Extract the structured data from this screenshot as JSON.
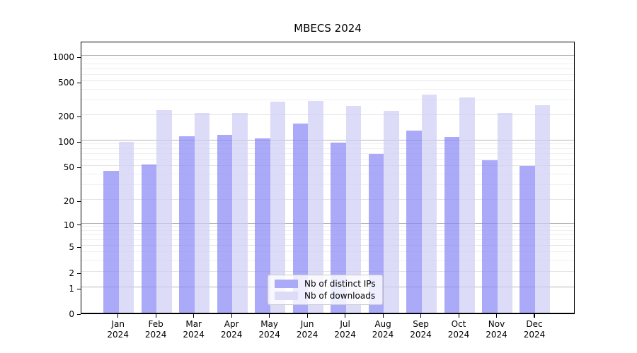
{
  "title": "MBECS 2024",
  "colors": {
    "bar_dark": "rgba(134,134,245,0.7)",
    "bar_light": "rgba(205,205,245,0.7)",
    "bar_dark_solid": "#aaaaf8",
    "bar_light_solid": "#dcdcf8",
    "grid_major": "#b3b3b3",
    "grid_mid": "#e4e4e4",
    "grid_minor": "#f0f0f0",
    "axis": "#000000",
    "background": "#ffffff"
  },
  "legend": {
    "items": [
      {
        "label": "Nb of distinct IPs",
        "swatch": "dark"
      },
      {
        "label": "Nb of downloads",
        "swatch": "light"
      }
    ]
  },
  "y_axis": {
    "tick_values": [
      1000,
      500,
      200,
      100,
      50,
      20,
      10,
      5,
      2,
      1,
      0
    ],
    "tick_labels": [
      "1000",
      "500",
      "200",
      "100",
      "50",
      "20",
      "10",
      "5",
      "2",
      "1",
      "0"
    ]
  },
  "x_axis": {
    "months": [
      "Jan",
      "Feb",
      "Mar",
      "Apr",
      "May",
      "Jun",
      "Jul",
      "Aug",
      "Sep",
      "Oct",
      "Nov",
      "Dec"
    ],
    "year": "2024"
  },
  "chart_data": {
    "type": "bar",
    "title": "MBECS 2024",
    "categories": [
      "Jan 2024",
      "Feb 2024",
      "Mar 2024",
      "Apr 2024",
      "May 2024",
      "Jun 2024",
      "Jul 2024",
      "Aug 2024",
      "Sep 2024",
      "Oct 2024",
      "Nov 2024",
      "Dec 2024"
    ],
    "series": [
      {
        "name": "Nb of distinct IPs",
        "values": [
          44,
          52,
          112,
          116,
          105,
          160,
          94,
          69,
          130,
          110,
          58,
          50
        ]
      },
      {
        "name": "Nb of downloads",
        "values": [
          96,
          230,
          210,
          212,
          285,
          295,
          258,
          225,
          350,
          324,
          211,
          262
        ]
      }
    ],
    "yscale": "log",
    "yticks": [
      0,
      1,
      2,
      5,
      10,
      20,
      50,
      100,
      200,
      500,
      1000
    ],
    "ylim": [
      0,
      1500
    ],
    "grid": "both",
    "legend_position": "lower center inside"
  }
}
